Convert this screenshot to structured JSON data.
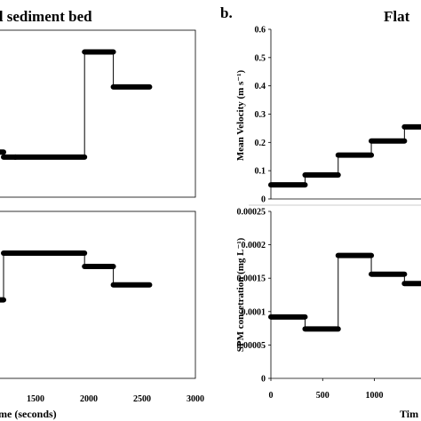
{
  "figure": {
    "left_title": "d sediment bed",
    "right_panel_letter": "b.",
    "right_title": "Flat",
    "left_xlabel": "me (seconds)",
    "right_xlabel": "Tim"
  },
  "chart_data": [
    {
      "panel": "left-top",
      "type": "line",
      "title": "d sediment bed",
      "xlim": [
        1150,
        3000
      ],
      "ylim": [
        0,
        1
      ],
      "xticks": [],
      "yticks": [],
      "series": [
        {
          "points": [
            [
              1150,
              0.27
            ],
            [
              1200,
              0.27
            ],
            [
              1200,
              0.24
            ],
            [
              1310,
              0.24
            ],
            [
              1310,
              0.24
            ],
            [
              1960,
              0.24
            ],
            [
              1960,
              0.87
            ],
            [
              2230,
              0.87
            ],
            [
              2230,
              0.66
            ],
            [
              2570,
              0.66
            ]
          ]
        }
      ]
    },
    {
      "panel": "left-bottom",
      "type": "line",
      "xlim": [
        1150,
        3000
      ],
      "ylim": [
        0,
        1
      ],
      "xticks": [
        1500,
        2000,
        2500,
        3000
      ],
      "tick_labels": [
        "1500",
        "2000",
        "2500",
        "3000"
      ],
      "xlabel": "me (seconds)",
      "series": [
        {
          "points": [
            [
              1150,
              0.47
            ],
            [
              1200,
              0.47
            ],
            [
              1200,
              0.75
            ],
            [
              1960,
              0.75
            ],
            [
              1960,
              0.67
            ],
            [
              2230,
              0.67
            ],
            [
              2230,
              0.56
            ],
            [
              2570,
              0.56
            ]
          ]
        }
      ]
    },
    {
      "panel": "right-top",
      "type": "line",
      "title": "Flat",
      "xlim": [
        0,
        1450
      ],
      "ylim": [
        0,
        0.6
      ],
      "ylabel": "Mean Velocity (m s⁻¹)",
      "yticks": [
        0,
        0.1,
        0.2,
        0.3,
        0.4,
        0.5,
        0.6
      ],
      "tick_labels": [
        "0",
        "0.1",
        "0.2",
        "0.3",
        "0.4",
        "0.5",
        "0.6"
      ],
      "series": [
        {
          "points": [
            [
              0,
              0.05
            ],
            [
              330,
              0.05
            ],
            [
              330,
              0.085
            ],
            [
              650,
              0.085
            ],
            [
              650,
              0.155
            ],
            [
              970,
              0.155
            ],
            [
              970,
              0.205
            ],
            [
              1290,
              0.205
            ],
            [
              1290,
              0.255
            ],
            [
              1450,
              0.255
            ]
          ]
        }
      ]
    },
    {
      "panel": "right-bottom",
      "type": "line",
      "xlim": [
        0,
        1450
      ],
      "ylim": [
        0,
        0.00025
      ],
      "ylabel": "SPM concetration (mg L⁻¹)",
      "xlabel": "Tim",
      "yticks": [
        0,
        5e-05,
        0.0001,
        0.00015,
        0.0002,
        0.00025
      ],
      "tick_labels": [
        "0",
        "0.00005",
        "0.0001",
        "0.00015",
        "0.0002",
        "0.00025"
      ],
      "xticks": [
        0,
        500,
        1000
      ],
      "xtick_labels": [
        "0",
        "500",
        "1000"
      ],
      "series": [
        {
          "points": [
            [
              0,
              9.2e-05
            ],
            [
              330,
              9.2e-05
            ],
            [
              330,
              7.4e-05
            ],
            [
              650,
              7.4e-05
            ],
            [
              650,
              0.000184
            ],
            [
              970,
              0.000184
            ],
            [
              970,
              0.000156
            ],
            [
              1290,
              0.000156
            ],
            [
              1290,
              0.000142
            ],
            [
              1450,
              0.000142
            ]
          ]
        }
      ]
    }
  ]
}
